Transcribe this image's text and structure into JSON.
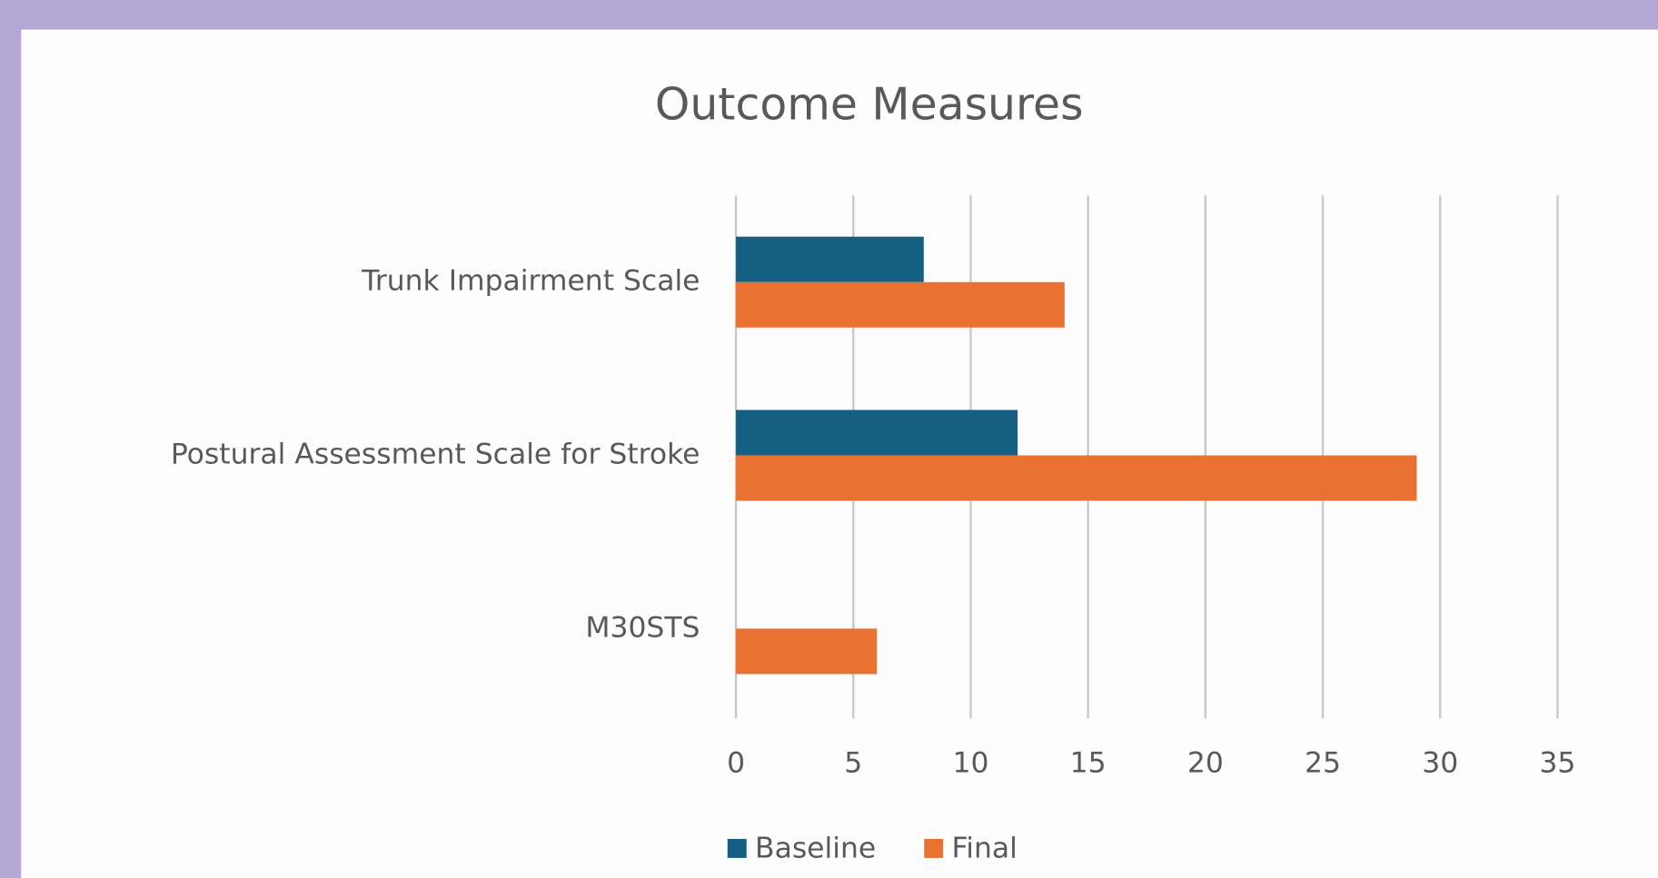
{
  "chart_data": {
    "type": "hbar",
    "title": "Outcome Measures",
    "categories": [
      "Trunk Impairment Scale",
      "Postural Assessment Scale for Stroke",
      "M30STS"
    ],
    "series": [
      {
        "name": "Baseline",
        "color": "#156082",
        "values": [
          8,
          12,
          0
        ]
      },
      {
        "name": "Final",
        "color": "#e97132",
        "values": [
          14,
          29,
          6
        ]
      }
    ],
    "xlim": [
      0,
      35
    ],
    "xticks": [
      0,
      5,
      10,
      15,
      20,
      25,
      30,
      35
    ],
    "grid": true,
    "legend": "bottom"
  }
}
